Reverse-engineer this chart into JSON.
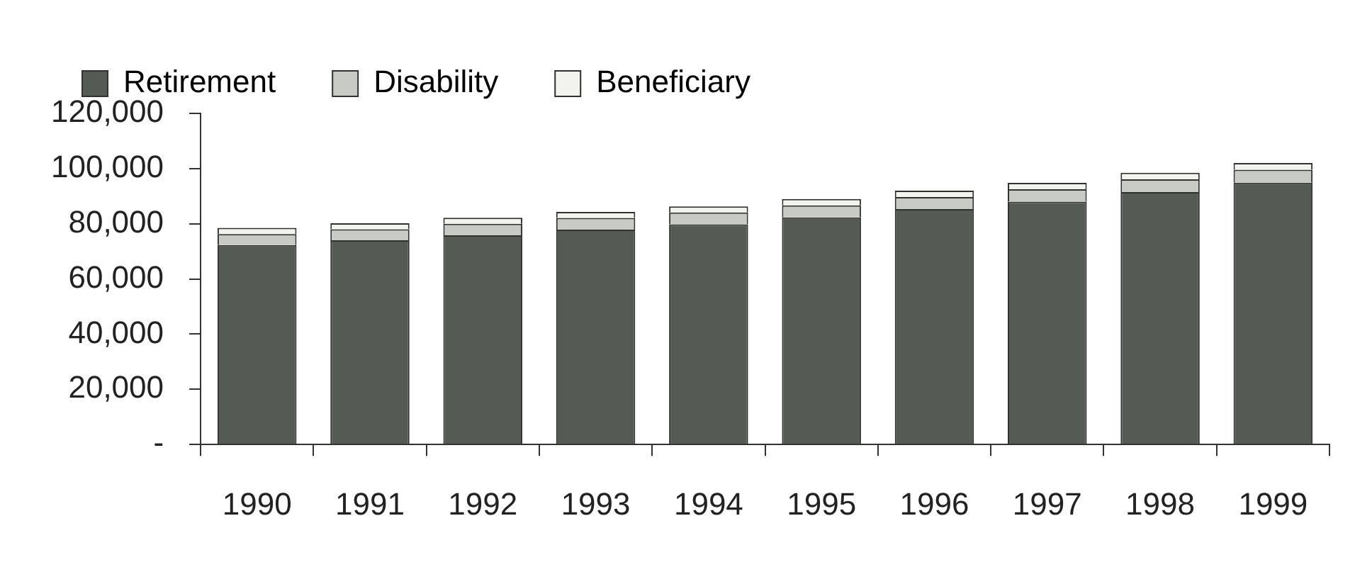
{
  "chart_data": {
    "type": "bar",
    "stacked": true,
    "categories": [
      "1990",
      "1991",
      "1992",
      "1993",
      "1994",
      "1995",
      "1996",
      "1997",
      "1998",
      "1999"
    ],
    "series": [
      {
        "name": "Retirement",
        "color": "#555a55",
        "values": [
          72300,
          74000,
          75800,
          77900,
          79800,
          82300,
          85300,
          88000,
          91500,
          94900
        ]
      },
      {
        "name": "Disability",
        "color": "#c8cac6",
        "values": [
          4000,
          4000,
          4200,
          4200,
          4300,
          4400,
          4400,
          4500,
          4600,
          4700
        ]
      },
      {
        "name": "Beneficiary",
        "color": "#f2f2ee",
        "values": [
          2200,
          2200,
          2200,
          2200,
          2200,
          2300,
          2300,
          2300,
          2400,
          2400
        ]
      }
    ],
    "ylim": [
      0,
      120000
    ],
    "yticks": [
      {
        "value": 0,
        "label": "-"
      },
      {
        "value": 20000,
        "label": "20,000"
      },
      {
        "value": 40000,
        "label": "40,000"
      },
      {
        "value": 60000,
        "label": "60,000"
      },
      {
        "value": 80000,
        "label": "80,000"
      },
      {
        "value": 100000,
        "label": "100,000"
      },
      {
        "value": 120000,
        "label": "120,000"
      }
    ],
    "grid": false,
    "legend": "top"
  }
}
